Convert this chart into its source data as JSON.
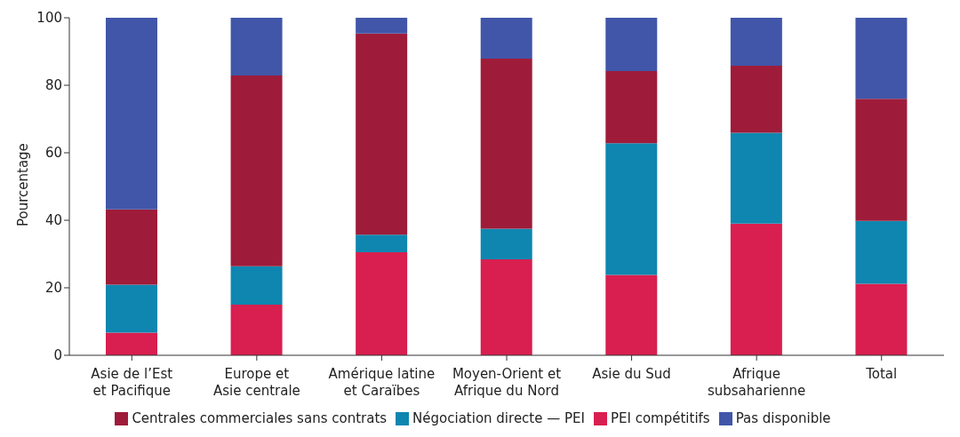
{
  "chart_data": {
    "type": "bar",
    "stacked": true,
    "ylabel": "Pourcentage",
    "categories": [
      "Asie de l’Est\net Pacifique",
      "Europe et\nAsie centrale",
      "Amérique latine\net Caraïbes",
      "Moyen-Orient et\nAfrique du Nord",
      "Asie du Sud",
      "Afrique\nsubsaharienne",
      "Total"
    ],
    "series": [
      {
        "name": "PEI compétitifs",
        "color": "#d81f4f",
        "values": [
          6.7,
          15.0,
          30.5,
          28.4,
          23.8,
          39.0,
          21.2
        ]
      },
      {
        "name": "Négociation directe — PEI",
        "color": "#0e86b0",
        "values": [
          14.2,
          11.4,
          5.2,
          9.1,
          39.0,
          26.9,
          18.6
        ]
      },
      {
        "name": "Centrales commerciales sans contrats",
        "color": "#9e1c3a",
        "values": [
          22.3,
          56.5,
          59.6,
          50.4,
          21.4,
          19.9,
          36.2
        ]
      },
      {
        "name": "Pas disponible",
        "color": "#4156a8",
        "values": [
          56.8,
          17.1,
          4.7,
          12.1,
          15.8,
          14.2,
          24.0
        ]
      }
    ],
    "ylim": [
      0,
      100
    ],
    "yticks": [
      0,
      20,
      40,
      60,
      80,
      100
    ],
    "grid": false,
    "legend": "bottom"
  }
}
